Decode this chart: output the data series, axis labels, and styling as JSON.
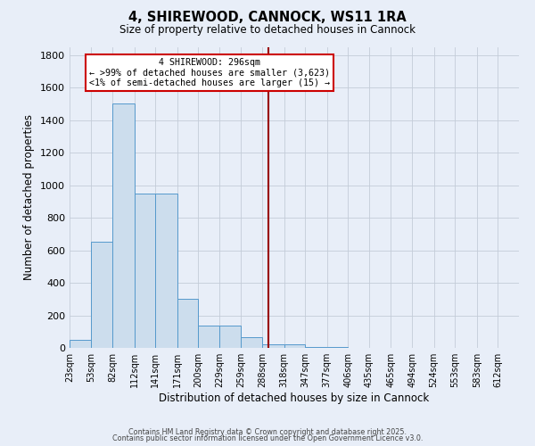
{
  "title": "4, SHIREWOOD, CANNOCK, WS11 1RA",
  "subtitle": "Size of property relative to detached houses in Cannock",
  "xlabel": "Distribution of detached houses by size in Cannock",
  "ylabel": "Number of detached properties",
  "bar_color": "#ccdded",
  "bar_edgecolor": "#5599cc",
  "background_color": "#e8eef8",
  "bin_labels": [
    "23sqm",
    "53sqm",
    "82sqm",
    "112sqm",
    "141sqm",
    "171sqm",
    "200sqm",
    "229sqm",
    "259sqm",
    "288sqm",
    "318sqm",
    "347sqm",
    "377sqm",
    "406sqm",
    "435sqm",
    "465sqm",
    "494sqm",
    "524sqm",
    "553sqm",
    "583sqm",
    "612sqm"
  ],
  "bin_edges": [
    23,
    53,
    82,
    112,
    141,
    171,
    200,
    229,
    259,
    288,
    318,
    347,
    377,
    406,
    435,
    465,
    494,
    524,
    553,
    583,
    612
  ],
  "bar_heights": [
    50,
    650,
    1500,
    950,
    950,
    300,
    135,
    135,
    65,
    20,
    20,
    5,
    5,
    0,
    0,
    0,
    0,
    0,
    0,
    0
  ],
  "vline_x": 296,
  "vline_color": "#990000",
  "annotation_text": "4 SHIREWOOD: 296sqm\n← >99% of detached houses are smaller (3,623)\n<1% of semi-detached houses are larger (15) →",
  "annotation_box_color": "#cc0000",
  "annotation_fill": "#ffffff",
  "ylim": [
    0,
    1850
  ],
  "yticks": [
    0,
    200,
    400,
    600,
    800,
    1000,
    1200,
    1400,
    1600,
    1800
  ],
  "grid_color": "#c4ccd8",
  "footer1": "Contains HM Land Registry data © Crown copyright and database right 2025.",
  "footer2": "Contains public sector information licensed under the Open Government Licence v3.0."
}
